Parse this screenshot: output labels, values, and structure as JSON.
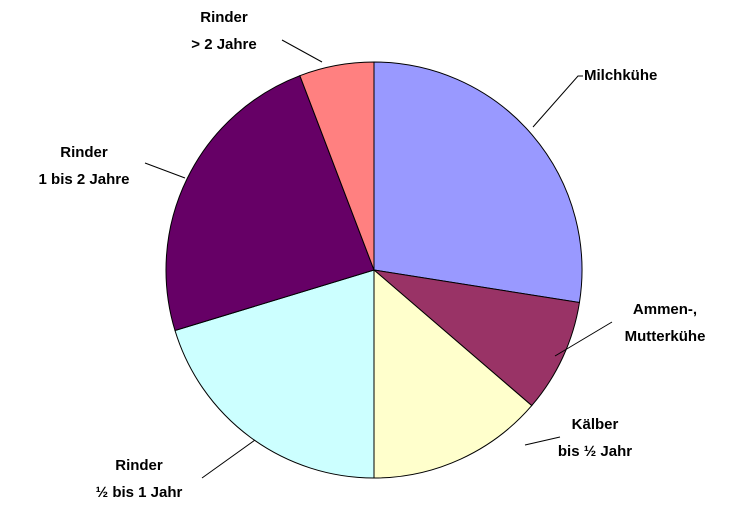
{
  "chart_data": {
    "type": "pie",
    "categories": [
      "Milchkühe",
      "Ammen-,\nMutterkühe",
      "Kälber\nbis ½ Jahr",
      "Rinder\n½ bis 1 Jahr",
      "Rinder\n1 bis 2 Jahre",
      "Rinder\n> 2 Jahre"
    ],
    "values": [
      27.5,
      8.8,
      13.7,
      20.3,
      23.9,
      5.8
    ],
    "colors": [
      "#9999ff",
      "#993366",
      "#ffffcc",
      "#ccffff",
      "#660066",
      "#ff8080"
    ]
  }
}
